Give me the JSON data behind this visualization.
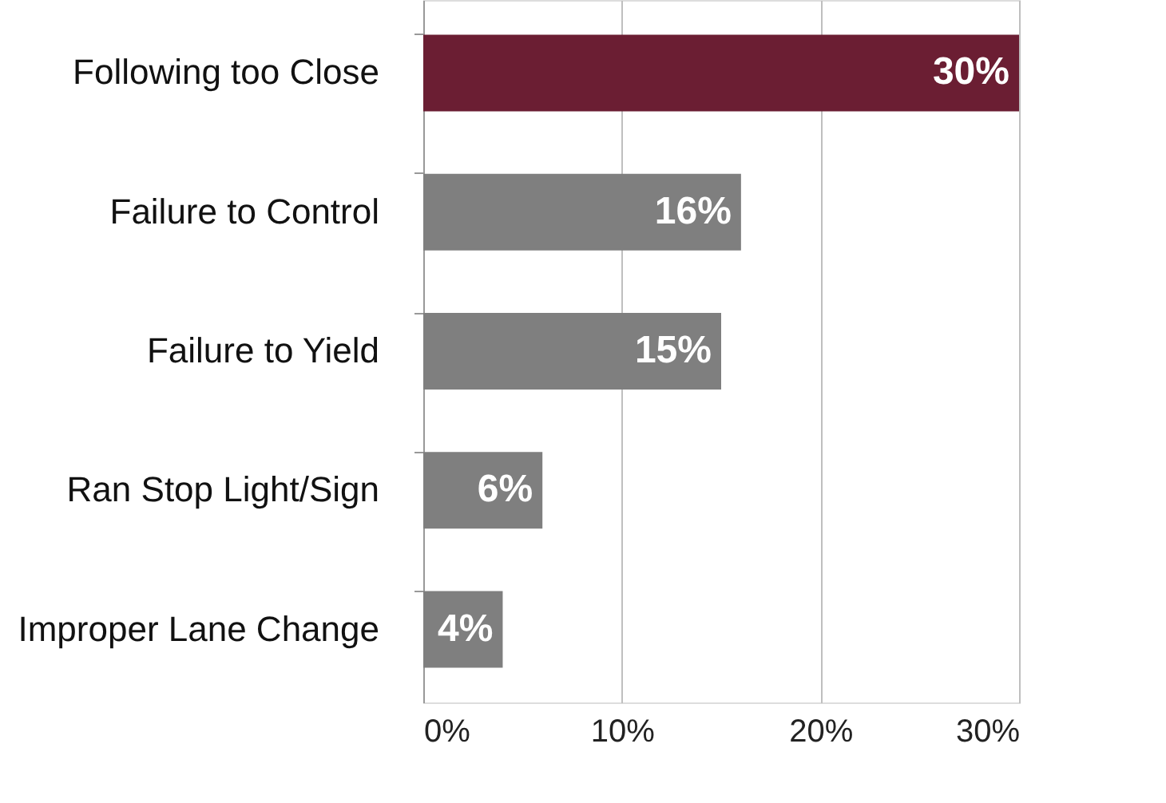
{
  "chart_data": {
    "type": "bar",
    "orientation": "horizontal",
    "categories": [
      "Following too Close",
      "Failure to Control",
      "Failure to Yield",
      "Ran Stop Light/Sign",
      "Improper Lane Change"
    ],
    "values": [
      30,
      16,
      15,
      6,
      4
    ],
    "colors": [
      "#6b1e33",
      "#7f7f7f",
      "#7f7f7f",
      "#7f7f7f",
      "#7f7f7f"
    ],
    "value_labels": [
      "30%",
      "16%",
      "15%",
      "6%",
      "4%"
    ],
    "xlim": [
      0,
      30
    ],
    "xticks": [
      {
        "value": 0,
        "label": "0%"
      },
      {
        "value": 10,
        "label": "10%"
      },
      {
        "value": 20,
        "label": "20%"
      },
      {
        "value": 30,
        "label": "30%"
      }
    ],
    "grid": "x"
  }
}
